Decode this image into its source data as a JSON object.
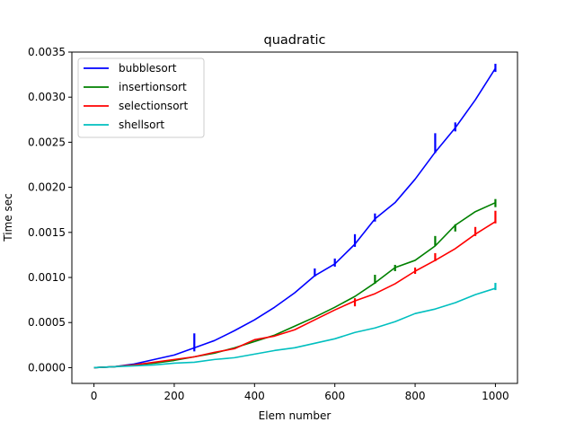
{
  "chart_data": {
    "type": "line",
    "title": "quadratic",
    "xlabel": "Elem number",
    "ylabel": "Time sec",
    "xlim": [
      -55,
      1055
    ],
    "ylim": [
      -0.000175,
      0.0035
    ],
    "xticks": [
      0,
      200,
      400,
      600,
      800,
      1000
    ],
    "xtick_labels": [
      "0",
      "200",
      "400",
      "600",
      "800",
      "1000"
    ],
    "yticks": [
      0,
      0.0005,
      0.001,
      0.0015,
      0.002,
      0.0025,
      0.003,
      0.0035
    ],
    "ytick_labels": [
      "0.0000",
      "0.0005",
      "0.0010",
      "0.0015",
      "0.0020",
      "0.0025",
      "0.0030",
      "0.0035"
    ],
    "grid": false,
    "legend_position": "top-left",
    "x": [
      0,
      50,
      100,
      150,
      200,
      250,
      300,
      350,
      400,
      450,
      500,
      550,
      600,
      650,
      700,
      750,
      800,
      850,
      900,
      950,
      1000
    ],
    "series": [
      {
        "name": "bubblesort",
        "color": "#0000ff",
        "values": [
          0.0,
          1e-05,
          4e-05,
          9e-05,
          0.00014,
          0.00022,
          0.0003,
          0.00041,
          0.00053,
          0.00067,
          0.00083,
          0.00102,
          0.00115,
          0.00137,
          0.00165,
          0.00183,
          0.00209,
          0.00239,
          0.00266,
          0.00297,
          0.00332
        ],
        "spikes": [
          [
            250,
            0.00018,
            0.00038
          ],
          [
            550,
            0.00101,
            0.0011
          ],
          [
            600,
            0.00112,
            0.00121
          ],
          [
            650,
            0.00134,
            0.00148
          ],
          [
            700,
            0.00162,
            0.00171
          ],
          [
            850,
            0.00238,
            0.0026
          ],
          [
            900,
            0.00262,
            0.00272
          ],
          [
            1000,
            0.00328,
            0.00337
          ]
        ]
      },
      {
        "name": "insertionsort",
        "color": "#008000",
        "values": [
          0.0,
          1e-05,
          3e-05,
          5e-05,
          8e-05,
          0.00012,
          0.00016,
          0.00022,
          0.00029,
          0.00036,
          0.00046,
          0.00056,
          0.00067,
          0.00079,
          0.00094,
          0.00111,
          0.00119,
          0.00135,
          0.00158,
          0.00173,
          0.00183
        ],
        "spikes": [
          [
            700,
            0.00093,
            0.00103
          ],
          [
            750,
            0.00107,
            0.00114
          ],
          [
            850,
            0.00135,
            0.00146
          ],
          [
            900,
            0.00151,
            0.00159
          ],
          [
            1000,
            0.00178,
            0.00187
          ]
        ]
      },
      {
        "name": "selectionsort",
        "color": "#ff0000",
        "values": [
          0.0,
          1e-05,
          3e-05,
          6e-05,
          9e-05,
          0.00012,
          0.00017,
          0.00021,
          0.00031,
          0.00035,
          0.00042,
          0.00053,
          0.00064,
          0.00074,
          0.00082,
          0.00093,
          0.00107,
          0.00119,
          0.00132,
          0.00148,
          0.00162
        ],
        "spikes": [
          [
            650,
            0.00068,
            0.00077
          ],
          [
            800,
            0.00104,
            0.00111
          ],
          [
            850,
            0.00118,
            0.00127
          ],
          [
            950,
            0.00146,
            0.00156
          ],
          [
            1000,
            0.0016,
            0.00174
          ]
        ]
      },
      {
        "name": "shellsort",
        "color": "#00bfbf",
        "values": [
          0.0,
          1e-05,
          2e-05,
          3e-05,
          5e-05,
          6e-05,
          9e-05,
          0.00011,
          0.00015,
          0.00019,
          0.00022,
          0.00027,
          0.00032,
          0.00039,
          0.00044,
          0.00051,
          0.0006,
          0.00065,
          0.00072,
          0.00081,
          0.00088
        ],
        "spikes": [
          [
            1000,
            0.00086,
            0.00094
          ]
        ]
      }
    ]
  }
}
